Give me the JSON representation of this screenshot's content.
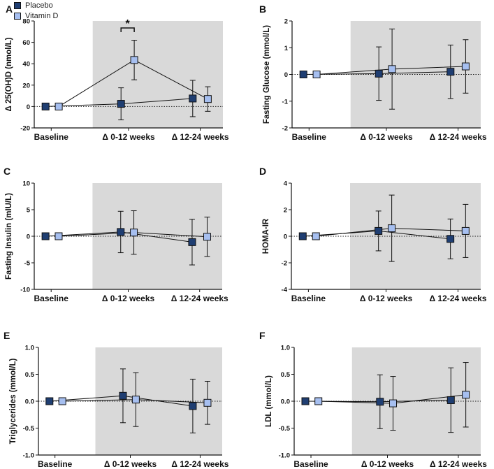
{
  "legend": {
    "items": [
      {
        "label": "Placebo",
        "color": "#1f3e72"
      },
      {
        "label": "Vitamin D",
        "color": "#a6bff0"
      }
    ]
  },
  "colors": {
    "shade": "#d9d9d9",
    "placebo": "#1f3e72",
    "vitamin_d": "#a6bff0"
  },
  "chart_data": [
    {
      "panel": "A",
      "type": "scatter",
      "ylabel": "Δ 25(OH)D (nmol/L)",
      "categories": [
        "Baseline",
        "Δ 0-12 weeks",
        "Δ 12-24 weeks"
      ],
      "ylim": [
        -20,
        80
      ],
      "yticks": [
        -20,
        0,
        20,
        40,
        60,
        80
      ],
      "shaded_from": "Δ 0-12 weeks",
      "zero_line": true,
      "series": [
        {
          "name": "Placebo",
          "values": [
            0,
            2.5,
            7.5
          ],
          "err": [
            0,
            15,
            17
          ]
        },
        {
          "name": "Vitamin D",
          "values": [
            0,
            43.5,
            7
          ],
          "err": [
            0,
            18.5,
            11.5
          ]
        }
      ],
      "annotation": {
        "text": "*",
        "between": [
          "Placebo",
          "Vitamin D"
        ],
        "category": "Δ 0-12 weeks"
      }
    },
    {
      "panel": "B",
      "type": "scatter",
      "ylabel": "Fasting Glucose (mmol/L)",
      "categories": [
        "Baseline",
        "Δ 0-12 weeks",
        "Δ 12-24 weeks"
      ],
      "ylim": [
        -2,
        2
      ],
      "yticks": [
        -2,
        -1,
        0,
        1,
        2
      ],
      "shaded_from": "Δ 0-12 weeks",
      "zero_line": true,
      "series": [
        {
          "name": "Placebo",
          "values": [
            0,
            0.03,
            0.1
          ],
          "err": [
            0,
            1.0,
            1.0
          ]
        },
        {
          "name": "Vitamin D",
          "values": [
            0,
            0.2,
            0.3
          ],
          "err": [
            0,
            1.5,
            1.0
          ]
        }
      ]
    },
    {
      "panel": "C",
      "type": "scatter",
      "ylabel": "Fasting Insulin (mIU/L)",
      "categories": [
        "Baseline",
        "Δ 0-12 weeks",
        "Δ 12-24 weeks"
      ],
      "ylim": [
        -10,
        10
      ],
      "yticks": [
        -10,
        -5,
        0,
        5,
        10
      ],
      "shaded_from": "Δ 0-12 weeks",
      "zero_line": true,
      "series": [
        {
          "name": "Placebo",
          "values": [
            0,
            0.8,
            -1.1
          ],
          "err": [
            0,
            3.9,
            4.3
          ]
        },
        {
          "name": "Vitamin D",
          "values": [
            0,
            0.7,
            -0.1
          ],
          "err": [
            0,
            4.1,
            3.7
          ]
        }
      ]
    },
    {
      "panel": "D",
      "type": "scatter",
      "ylabel": "HOMA-IR",
      "categories": [
        "Baseline",
        "Δ 0-12 weeks",
        "Δ 12-24 weeks"
      ],
      "ylim": [
        -4,
        4
      ],
      "yticks": [
        -4,
        -2,
        0,
        2,
        4
      ],
      "shaded_from": "Δ 0-12 weeks",
      "zero_line": true,
      "series": [
        {
          "name": "Placebo",
          "values": [
            0,
            0.4,
            -0.2
          ],
          "err": [
            0,
            1.5,
            1.5
          ]
        },
        {
          "name": "Vitamin D",
          "values": [
            0,
            0.6,
            0.4
          ],
          "err": [
            0,
            2.5,
            2.0
          ]
        }
      ]
    },
    {
      "panel": "E",
      "type": "scatter",
      "ylabel": "Triglycerides (mmol/L)",
      "categories": [
        "Baseline",
        "Δ 0-12 weeks",
        "Δ 12-24 weeks"
      ],
      "ylim": [
        -1.0,
        1.0
      ],
      "yticks": [
        -1.0,
        -0.5,
        0.0,
        0.5,
        1.0
      ],
      "shaded_from": "Δ 0-12 weeks",
      "zero_line": true,
      "series": [
        {
          "name": "Placebo",
          "values": [
            0,
            0.1,
            -0.09
          ],
          "err": [
            0,
            0.5,
            0.5
          ]
        },
        {
          "name": "Vitamin D",
          "values": [
            0,
            0.03,
            -0.03
          ],
          "err": [
            0,
            0.5,
            0.4
          ]
        }
      ]
    },
    {
      "panel": "F",
      "type": "scatter",
      "ylabel": "LDL (mmol/L)",
      "categories": [
        "Baseline",
        "Δ 0-12 weeks",
        "Δ 12-24 weeks"
      ],
      "ylim": [
        -1.0,
        1.0
      ],
      "yticks": [
        -1.0,
        -0.5,
        0.0,
        0.5,
        1.0
      ],
      "shaded_from": "Δ 0-12 weeks",
      "zero_line": true,
      "series": [
        {
          "name": "Placebo",
          "values": [
            0,
            -0.01,
            0.02
          ],
          "err": [
            0,
            0.5,
            0.6
          ]
        },
        {
          "name": "Vitamin D",
          "values": [
            0,
            -0.04,
            0.12
          ],
          "err": [
            0,
            0.5,
            0.6
          ]
        }
      ]
    }
  ]
}
